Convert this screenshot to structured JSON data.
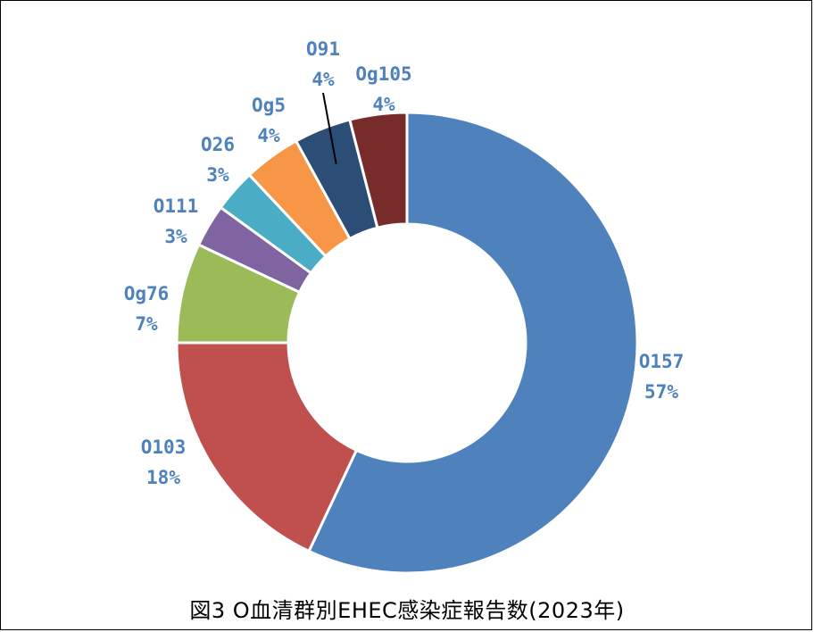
{
  "chart_data": {
    "type": "pie",
    "variant": "doughnut",
    "title": "図3  O血清群別EHEC感染症報告数(2023年)",
    "start_angle_deg": 0,
    "direction": "clockwise",
    "slices": [
      {
        "name": "O157",
        "value": 57,
        "label": "57%",
        "color": "#4F81BD"
      },
      {
        "name": "O103",
        "value": 18,
        "label": "18%",
        "color": "#C0504D"
      },
      {
        "name": "Og76",
        "value": 7,
        "label": "7%",
        "color": "#9BBB59"
      },
      {
        "name": "O111",
        "value": 3,
        "label": "3%",
        "color": "#8064A2"
      },
      {
        "name": "O26",
        "value": 3,
        "label": "3%",
        "color": "#4BACC6"
      },
      {
        "name": "Og5",
        "value": 4,
        "label": "4%",
        "color": "#F79646"
      },
      {
        "name": "O91",
        "value": 4,
        "label": "4%",
        "color": "#2C4D75"
      },
      {
        "name": "Og105",
        "value": 4,
        "label": "4%",
        "color": "#772C2A"
      }
    ],
    "label_color": "#4F81BD",
    "leader_line_on": [
      "O91"
    ]
  }
}
